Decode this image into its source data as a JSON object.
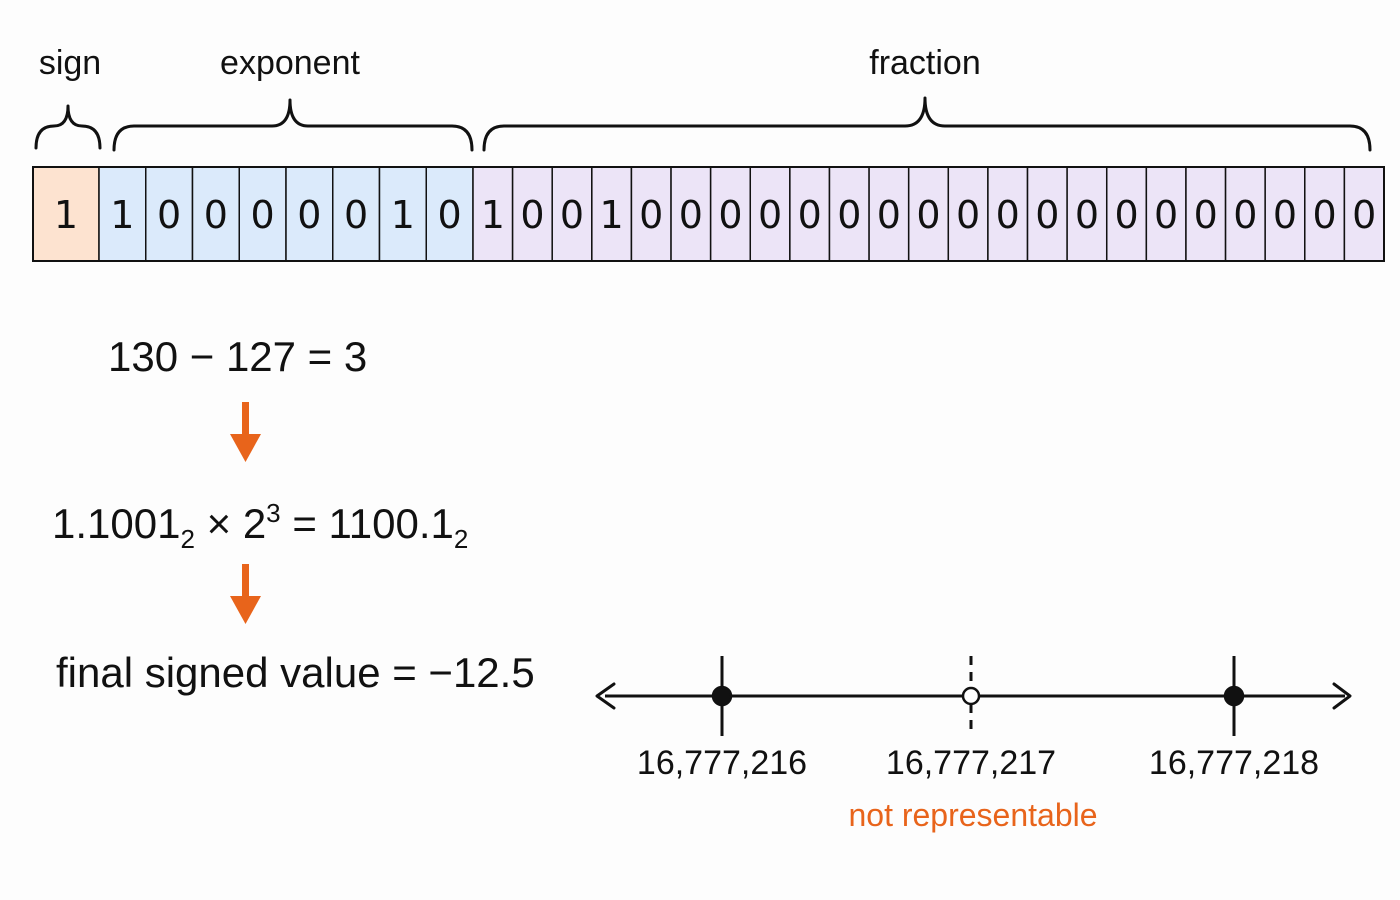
{
  "labels": {
    "sign": "sign",
    "exponent": "exponent",
    "fraction": "fraction"
  },
  "bits": {
    "sign": [
      "1"
    ],
    "exponent": [
      "1",
      "0",
      "0",
      "0",
      "0",
      "0",
      "1",
      "0"
    ],
    "fraction": [
      "1",
      "0",
      "0",
      "1",
      "0",
      "0",
      "0",
      "0",
      "0",
      "0",
      "0",
      "0",
      "0",
      "0",
      "0",
      "0",
      "0",
      "0",
      "0",
      "0",
      "0",
      "0",
      "0"
    ]
  },
  "steps": {
    "exponent_calc": "130 − 127 = 3",
    "scientific": {
      "mantissa": "1.1001",
      "mantissa_base": "2",
      "times": "×",
      "power_base": "2",
      "power_exp": "3",
      "equals": "=",
      "result": "1100.1",
      "result_base": "2"
    },
    "final": "final signed value = −12.5"
  },
  "number_line": {
    "points": [
      {
        "label": "16,777,216",
        "representable": true
      },
      {
        "label": "16,777,217",
        "representable": false
      },
      {
        "label": "16,777,218",
        "representable": true
      }
    ],
    "note": "not representable"
  },
  "colors": {
    "sign": "#fde3d0",
    "exponent": "#dbeafb",
    "fraction": "#ece4f7",
    "accent": "#e8641b",
    "ink": "#111111"
  }
}
